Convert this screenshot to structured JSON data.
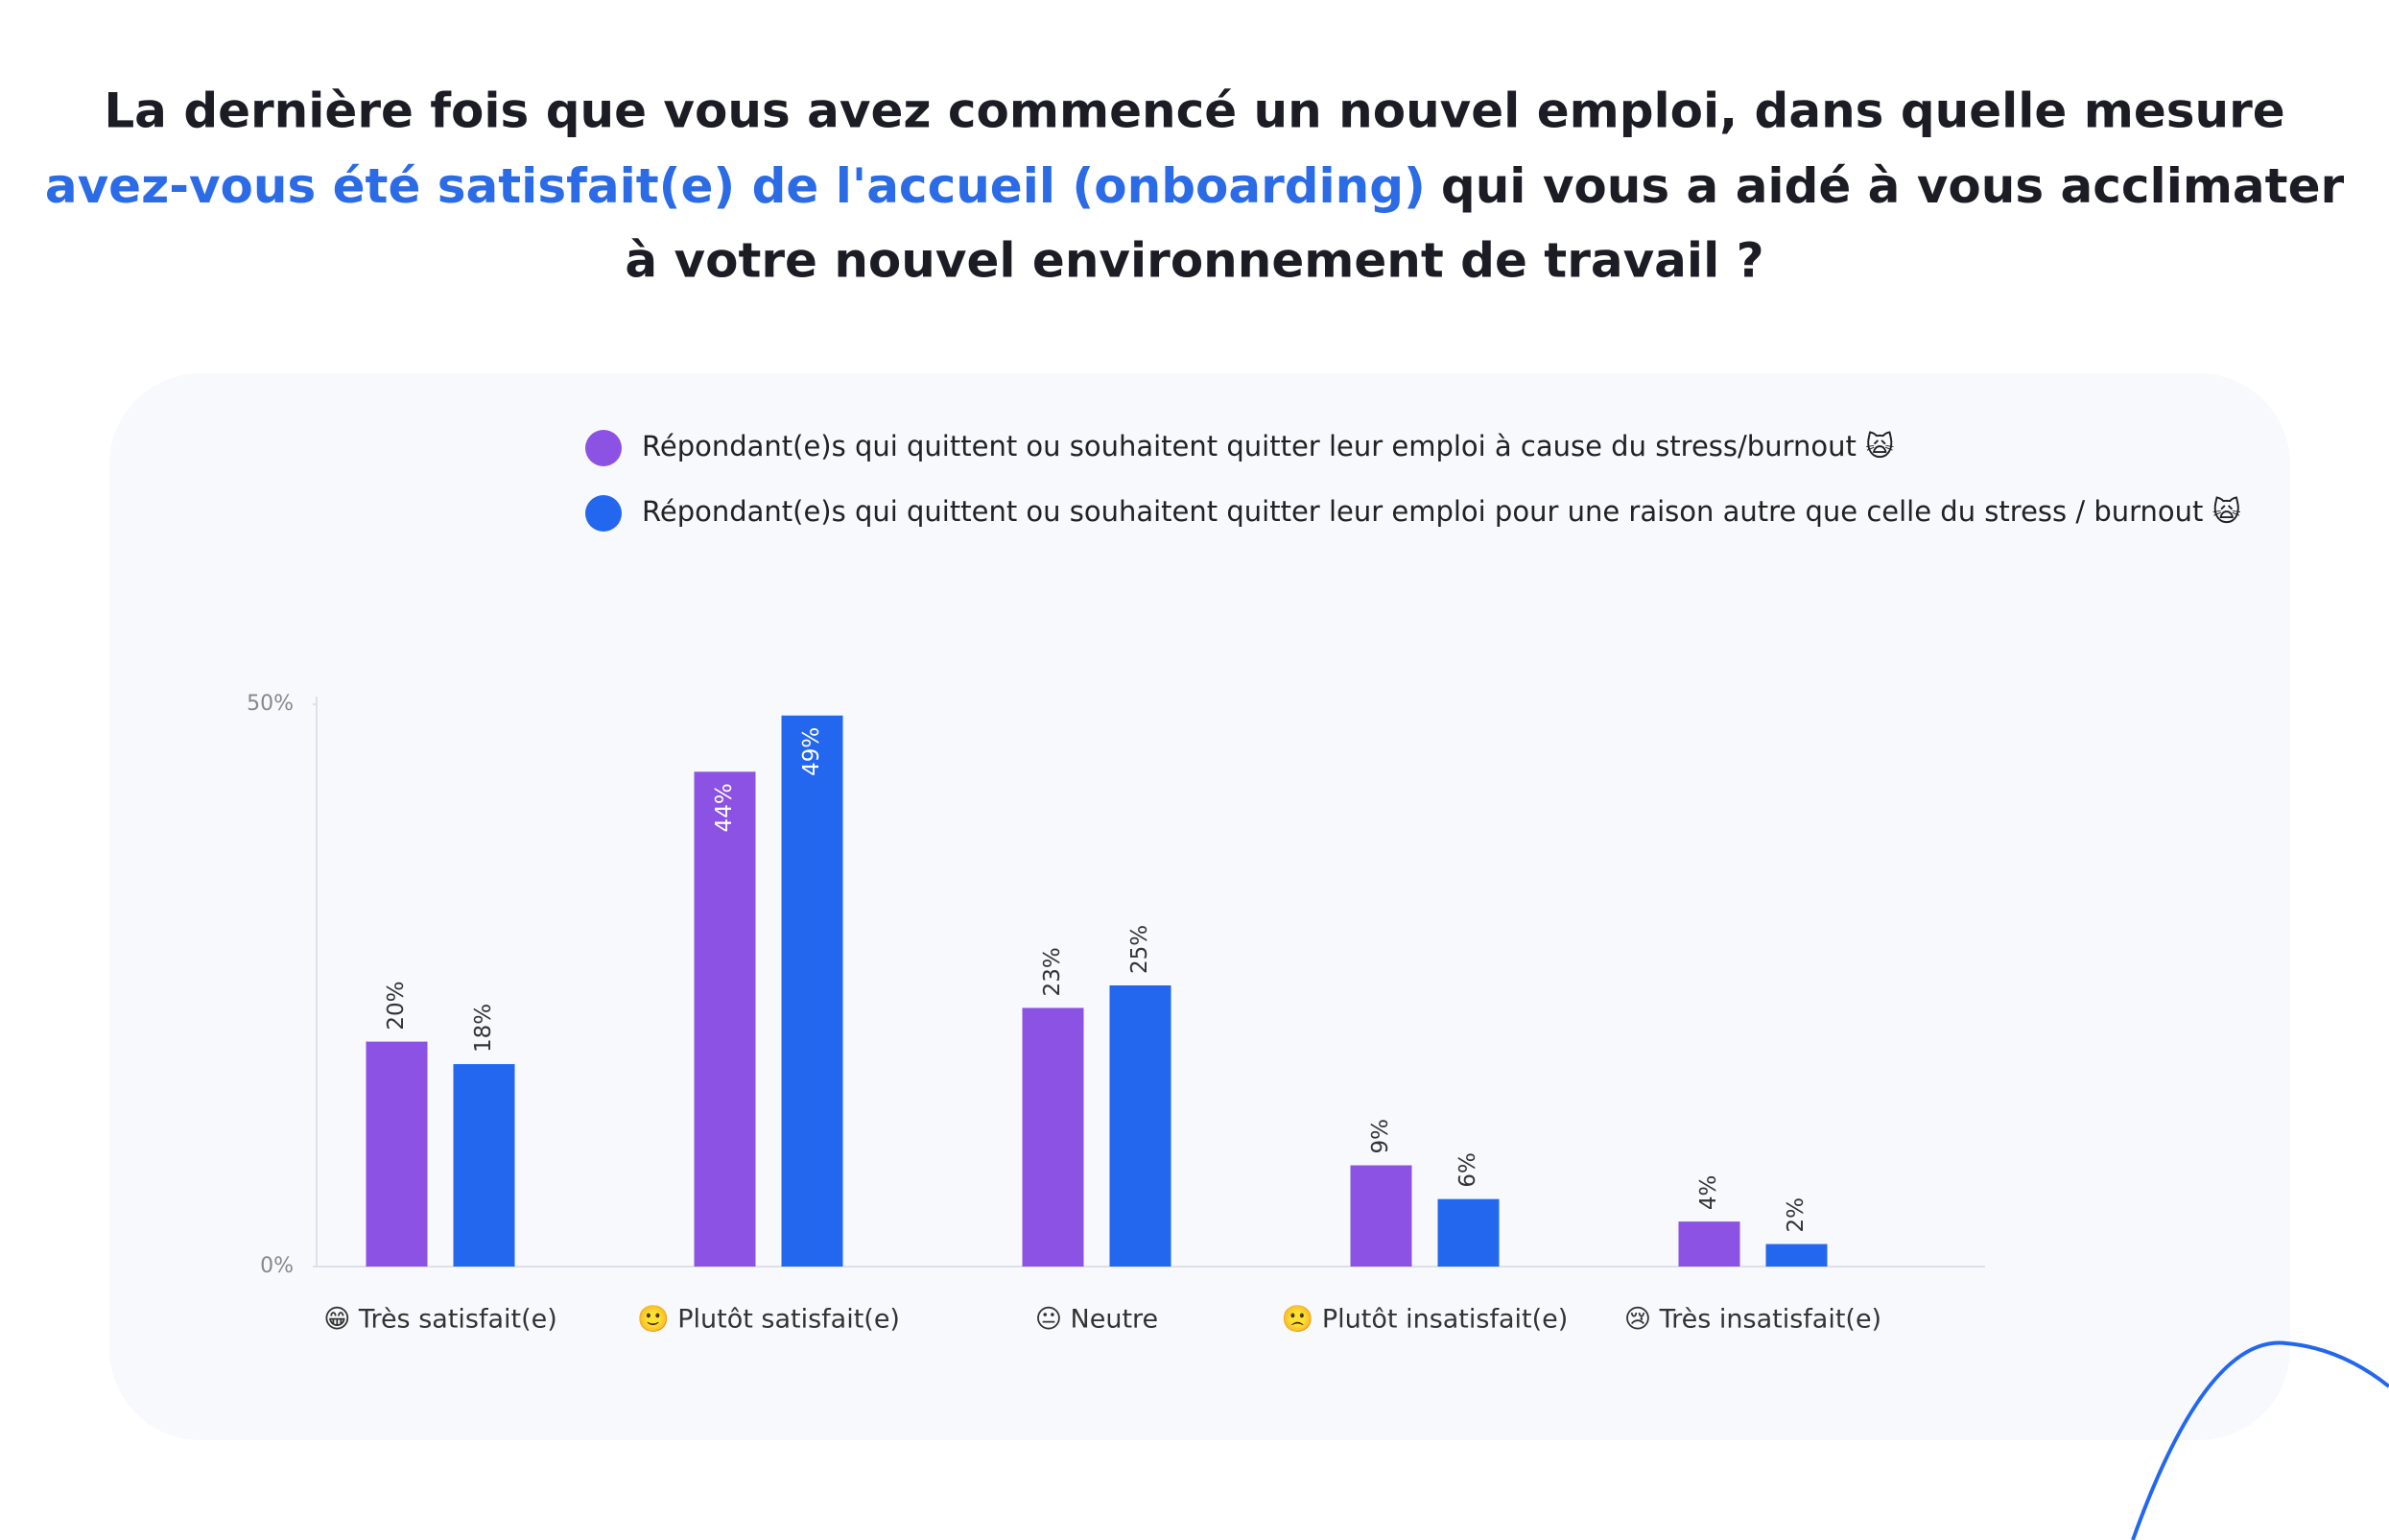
{
  "chart_data": {
    "type": "bar",
    "title": [
      "La dernière fois que vous avez commencé un nouvel emploi, dans quelle mesure",
      "avez-vous été satisfait(e) de l'accueil (onboarding)",
      "qui vous a aidé à vous acclimater",
      "à votre nouvel environnement de travail ?"
    ],
    "categories": [
      "😁 Très satisfait(e)",
      "🙂 Plutôt satisfait(e)",
      "😐 Neutre",
      "🙁 Plutôt insatisfait(e)",
      "😢 Très insatisfait(e)"
    ],
    "series": [
      {
        "name": "Répondant(e)s qui quittent ou souhaitent quitter leur emploi à cause du stress/burnout 🙀",
        "color": "#8c52e3",
        "values": [
          20,
          44,
          23,
          9,
          4
        ],
        "value_labels": [
          "20%",
          "44%",
          "23%",
          "9%",
          "4%"
        ]
      },
      {
        "name": "Répondant(e)s qui quittent ou souhaitent  quitter leur emploi pour une raison autre que celle du stress / burnout 🙀",
        "color": "#2467ef",
        "values": [
          18,
          49,
          25,
          6,
          2
        ],
        "value_labels": [
          "18%",
          "49%",
          "25%",
          "6%",
          "2%"
        ]
      }
    ],
    "ylim": [
      0,
      50
    ],
    "yticks": [
      {
        "value": 0,
        "label": "0%"
      },
      {
        "value": 50,
        "label": "50%"
      }
    ]
  }
}
